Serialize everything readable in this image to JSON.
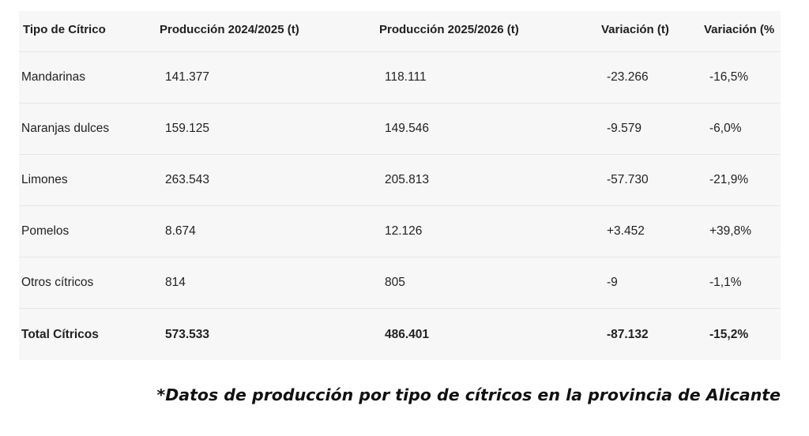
{
  "table": {
    "headers": [
      "Tipo de Cítrico",
      "Producción 2024/2025 (t)",
      "Producción 2025/2026 (t)",
      "Variación (t)",
      "Variación (%"
    ],
    "rows": [
      [
        "Mandarinas",
        "141.377",
        "118.111",
        "-23.266",
        "-16,5%"
      ],
      [
        "Naranjas dulces",
        "159.125",
        "149.546",
        "-9.579",
        "-6,0%"
      ],
      [
        "Limones",
        "263.543",
        "205.813",
        "-57.730",
        "-21,9%"
      ],
      [
        "Pomelos",
        "8.674",
        "12.126",
        "+3.452",
        "+39,8%"
      ],
      [
        "Otros cítricos",
        "814",
        "805",
        "-9",
        "-1,1%"
      ],
      [
        "Total Cítricos",
        "573.533",
        "486.401",
        "-87.132",
        "-15,2%"
      ]
    ]
  },
  "caption": "*Datos de producción por tipo de cítricos en la provincia de Alicante"
}
